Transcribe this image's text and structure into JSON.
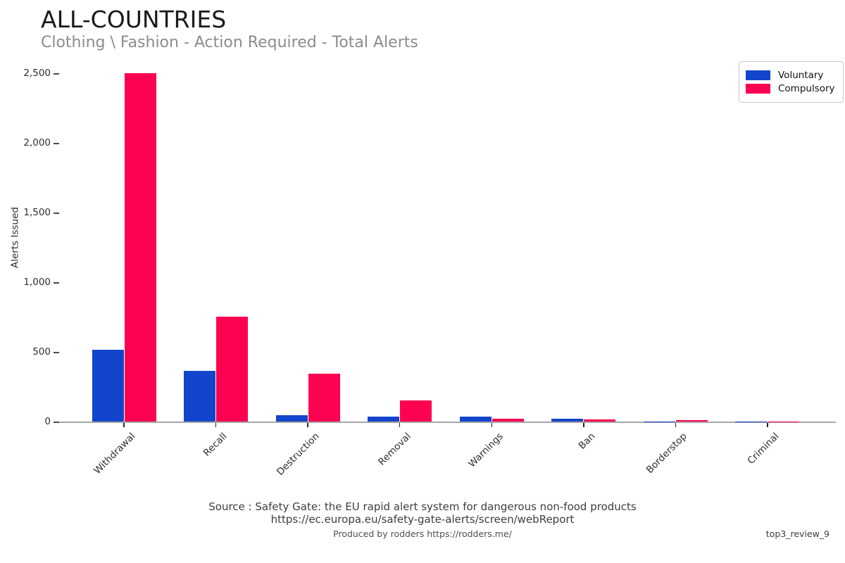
{
  "header": {
    "title": "ALL-COUNTRIES",
    "subtitle": "Clothing \\ Fashion - Action Required - Total Alerts"
  },
  "chart_data": {
    "type": "bar",
    "categories": [
      "Withdrawal",
      "Recall",
      "Destruction",
      "Removal",
      "Warnings",
      "Ban",
      "Borderstop",
      "Criminal"
    ],
    "series": [
      {
        "name": "Voluntary",
        "color": "#1245cb",
        "values": [
          515,
          365,
          45,
          37,
          33,
          20,
          1,
          1
        ]
      },
      {
        "name": "Compulsory",
        "color": "#fc0351",
        "values": [
          2500,
          750,
          345,
          150,
          22,
          16,
          8,
          1
        ]
      }
    ],
    "title": "ALL-COUNTRIES",
    "subtitle": "Clothing \\ Fashion - Action Required - Total Alerts",
    "xlabel": "",
    "ylabel": "Alerts Issued",
    "ylim": [
      0,
      2500
    ],
    "ytick_values": [
      0,
      500,
      1000,
      1500,
      2000,
      2500
    ],
    "ytick_labels": [
      "0",
      "500",
      "1,000",
      "1,500",
      "2,000",
      "2,500"
    ],
    "legend_position": "top-right",
    "grid": false
  },
  "footer": {
    "source_line1": "Source : Safety Gate: the EU rapid alert system for dangerous non-food products",
    "source_line2": "https://ec.europa.eu/safety-gate-alerts/screen/webReport",
    "produced_by": "Produced by rodders https://rodders.me/",
    "watermark": "top3_review_9"
  }
}
